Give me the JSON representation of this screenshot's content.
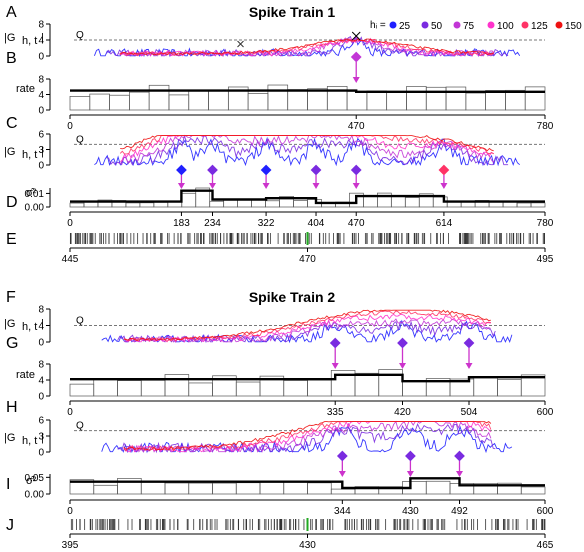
{
  "colors": {
    "h25": "#2020ff",
    "h50": "#7a2be0",
    "h75": "#c236d6",
    "h100": "#ff33cc",
    "h125": "#ff3366",
    "h150": "#ee1111",
    "arrow": "#cc33cc",
    "threshold": "#777777",
    "spike_marker": "#22aa22"
  },
  "legend": {
    "title": "hᵢ =",
    "items": [
      "25",
      "50",
      "75",
      "100",
      "125",
      "150"
    ]
  },
  "train1": {
    "title": "Spike Train 1",
    "labels": {
      "A": "A",
      "B": "B",
      "C": "C",
      "D": "D",
      "E": "E"
    },
    "ylabel_G": "|G",
    "ylabel_G_sub": "h, t",
    "ylabel_rate": "rate",
    "ylabel_var": "σ̂²",
    "q_label": "Q",
    "A": {
      "yticks": [
        "0",
        "4",
        "8"
      ]
    },
    "B": {
      "yticks": [
        "0",
        "4",
        "8"
      ],
      "xticks": [
        "0",
        "470",
        "780"
      ]
    },
    "C": {
      "yticks": [
        "0",
        "3",
        "6"
      ]
    },
    "D": {
      "yticks": [
        "0.00",
        "0.01"
      ],
      "xticks": [
        "0",
        "183",
        "234",
        "322",
        "404",
        "470",
        "614",
        "780"
      ]
    },
    "E": {
      "xticks": [
        "445",
        "470",
        "495"
      ]
    }
  },
  "train2": {
    "title": "Spike Train 2",
    "labels": {
      "F": "F",
      "G": "G",
      "H": "H",
      "I": "I",
      "J": "J"
    },
    "q_label": "Q",
    "F": {
      "yticks": [
        "0",
        "4",
        "8"
      ]
    },
    "G": {
      "yticks": [
        "0",
        "4",
        "8"
      ],
      "xticks": [
        "0",
        "335",
        "420",
        "504",
        "600"
      ]
    },
    "H": {
      "yticks": [
        "0",
        "3",
        "6"
      ]
    },
    "I": {
      "yticks": [
        "0.00",
        "0.05"
      ],
      "xticks": [
        "0",
        "344",
        "430",
        "492",
        "600"
      ]
    },
    "J": {
      "xticks": [
        "395",
        "430",
        "465"
      ]
    }
  },
  "chart_data": [
    {
      "type": "line",
      "panel": "A",
      "ylabel": "|G h,t|",
      "xlim": [
        0,
        780
      ],
      "ylim": [
        0,
        8
      ],
      "threshold_Q": 4,
      "change_points": [
        470
      ],
      "series_names": [
        "25",
        "50",
        "75",
        "100",
        "125",
        "150"
      ]
    },
    {
      "type": "bar",
      "panel": "B",
      "ylabel": "rate",
      "xlim": [
        0,
        780
      ],
      "ylim": [
        0,
        8
      ],
      "segments": [
        {
          "from": 0,
          "to": 470,
          "rate": 5.0
        },
        {
          "from": 470,
          "to": 780,
          "rate": 4.7
        }
      ]
    },
    {
      "type": "line",
      "panel": "C",
      "ylabel": "|G h,t|",
      "xlim": [
        0,
        780
      ],
      "ylim": [
        0,
        6
      ],
      "threshold_Q": 4,
      "change_points": [
        183,
        234,
        322,
        404,
        470,
        614
      ],
      "series_names": [
        "25",
        "50",
        "75",
        "100",
        "125",
        "150"
      ]
    },
    {
      "type": "bar",
      "panel": "D",
      "ylabel": "σ̂²",
      "xlim": [
        0,
        780
      ],
      "ylim": [
        0,
        0.014
      ],
      "segments": [
        {
          "from": 0,
          "to": 183,
          "value": 0.004
        },
        {
          "from": 183,
          "to": 234,
          "value": 0.012
        },
        {
          "from": 234,
          "to": 322,
          "value": 0.0055
        },
        {
          "from": 322,
          "to": 404,
          "value": 0.0065
        },
        {
          "from": 404,
          "to": 470,
          "value": 0.003
        },
        {
          "from": 470,
          "to": 614,
          "value": 0.008
        },
        {
          "from": 614,
          "to": 780,
          "value": 0.004
        }
      ]
    },
    {
      "type": "line",
      "panel": "F",
      "ylabel": "|G h,t|",
      "xlim": [
        0,
        600
      ],
      "ylim": [
        0,
        8
      ],
      "threshold_Q": 4,
      "change_points": [
        335,
        420,
        504
      ],
      "series_names": [
        "25",
        "50",
        "75",
        "100",
        "125",
        "150"
      ]
    },
    {
      "type": "bar",
      "panel": "G",
      "ylabel": "rate",
      "xlim": [
        0,
        600
      ],
      "ylim": [
        0,
        8
      ],
      "segments": [
        {
          "from": 0,
          "to": 335,
          "rate": 4.2
        },
        {
          "from": 335,
          "to": 420,
          "rate": 5.3
        },
        {
          "from": 420,
          "to": 504,
          "rate": 3.7
        },
        {
          "from": 504,
          "to": 600,
          "rate": 4.7
        }
      ]
    },
    {
      "type": "line",
      "panel": "H",
      "ylabel": "|G h,t|",
      "xlim": [
        0,
        600
      ],
      "ylim": [
        0,
        6
      ],
      "threshold_Q": 4,
      "change_points": [
        344,
        430,
        492
      ],
      "series_names": [
        "25",
        "50",
        "75",
        "100",
        "125",
        "150"
      ]
    },
    {
      "type": "bar",
      "panel": "I",
      "ylabel": "σ̂²",
      "xlim": [
        0,
        600
      ],
      "ylim": [
        0,
        0.06
      ],
      "segments": [
        {
          "from": 0,
          "to": 344,
          "value": 0.037
        },
        {
          "from": 344,
          "to": 430,
          "value": 0.018
        },
        {
          "from": 430,
          "to": 492,
          "value": 0.047
        },
        {
          "from": 492,
          "to": 600,
          "value": 0.026
        }
      ]
    }
  ]
}
